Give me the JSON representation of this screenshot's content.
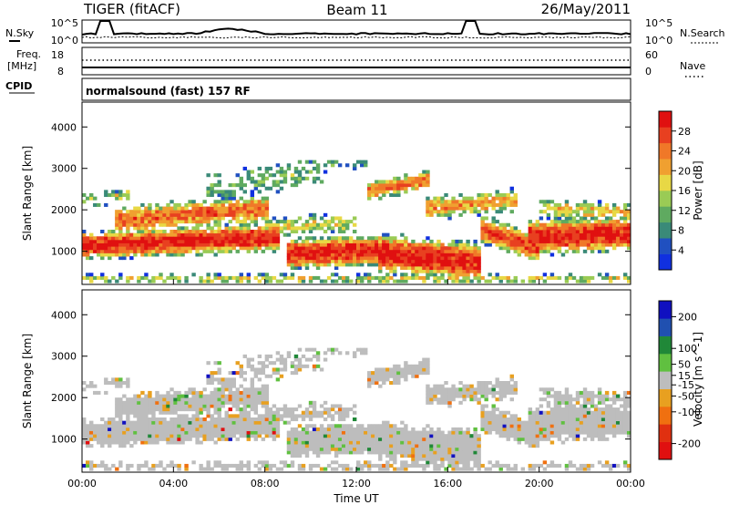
{
  "header": {
    "radar": "TIGER (fitACF)",
    "beam": "Beam 11",
    "date": "26/May/2011"
  },
  "noise_panel": {
    "left_label": "N.Sky",
    "right_label": "N.Search",
    "left_ticks": [
      "10^5",
      "10^0"
    ],
    "right_ticks": [
      "10^5",
      "10^0"
    ]
  },
  "freq_panel": {
    "left_label_1": "Freq.",
    "left_label_2": "[MHz]",
    "left_ticks": [
      "18",
      "8"
    ],
    "right_label": "Nave",
    "right_ticks": [
      "60",
      "0"
    ]
  },
  "cpid_panel": {
    "label": "CPID",
    "text": "normalsound (fast) 157 RF"
  },
  "colors": {
    "power_scale": [
      "#1030e0",
      "#2050c0",
      "#3a8a78",
      "#5faa60",
      "#9acb55",
      "#e8d845",
      "#f0a030",
      "#f07828",
      "#e84020",
      "#e01010"
    ],
    "velocity_scale": [
      "#1010c0",
      "#2050b0",
      "#208838",
      "#60c040",
      "#bdbdbd",
      "#e8a020",
      "#f07010",
      "#e03010",
      "#e01010"
    ]
  },
  "chart_data": [
    {
      "type": "heatmap",
      "quantity": "Power",
      "ylabel": "Slant Range [km]",
      "yticks": [
        1000,
        2000,
        3000,
        4000
      ],
      "ylim": [
        200,
        4600
      ],
      "xlim": [
        "00:00",
        "24:00"
      ],
      "colorbar": {
        "label": "Power [dB]",
        "ticks": [
          4,
          8,
          12,
          16,
          20,
          24,
          28
        ],
        "range": [
          0,
          32
        ]
      },
      "approx_bands": [
        {
          "t_start": 0,
          "t_end": 8.5,
          "range_km": [
            400,
            1600
          ],
          "power_dB": 28
        },
        {
          "t_start": 2,
          "t_end": 8,
          "range_km": [
            1500,
            2300
          ],
          "power_dB": 22
        },
        {
          "t_start": 9,
          "t_end": 13,
          "range_km": [
            500,
            1400
          ],
          "power_dB": 28
        },
        {
          "t_start": 13,
          "t_end": 24,
          "range_km": [
            300,
            2600
          ],
          "power_dB": 26
        }
      ]
    },
    {
      "type": "heatmap",
      "quantity": "Velocity",
      "ylabel": "Slant Range [km]",
      "yticks": [
        1000,
        2000,
        3000,
        4000
      ],
      "ylim": [
        200,
        4600
      ],
      "xlim": [
        "00:00",
        "24:00"
      ],
      "xlabel": "Time UT",
      "xticks": [
        "00:00",
        "04:00",
        "08:00",
        "12:00",
        "16:00",
        "20:00",
        "00:00"
      ],
      "colorbar": {
        "label": "Velocity [m s^-1]",
        "ticks": [
          200,
          100,
          50,
          15,
          -15,
          -50,
          -100,
          -200
        ],
        "range": [
          -250,
          250
        ]
      }
    }
  ]
}
